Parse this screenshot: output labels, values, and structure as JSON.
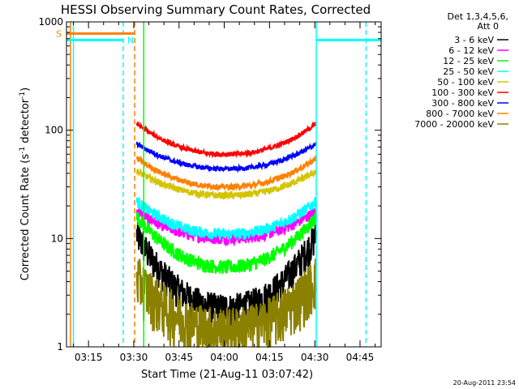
{
  "chart_data": {
    "type": "line",
    "title": "HESSI Observing Summary Count Rates, Corrected",
    "xlabel": "Start Time (21-Aug-11 03:07:42)",
    "ylabel_main": "Corrected Count Rate (s",
    "ylabel_sup1": "-1",
    "ylabel_mid": " detector",
    "ylabel_sup2": "-1",
    "ylabel_end": ")",
    "xlim_min": [
      7.7,
      112
    ],
    "ylim": [
      1,
      1000
    ],
    "y_scale": "log",
    "x_ticks": [
      {
        "min": 15,
        "label": "03:15"
      },
      {
        "min": 30,
        "label": "03:30"
      },
      {
        "min": 45,
        "label": "03:45"
      },
      {
        "min": 60,
        "label": "04:00"
      },
      {
        "min": 75,
        "label": "04:15"
      },
      {
        "min": 90,
        "label": "04:30"
      },
      {
        "min": 105,
        "label": "04:45"
      }
    ],
    "y_ticks": [
      {
        "value": 1,
        "label": "1"
      },
      {
        "value": 10,
        "label": "10"
      },
      {
        "value": 100,
        "label": "100"
      },
      {
        "value": 1000,
        "label": "1000"
      }
    ],
    "legend_header": [
      "Det 1,3,4,5,6,",
      "Att 0"
    ],
    "data_window_min": [
      31,
      90.5
    ],
    "series": [
      {
        "name": "3 - 6 keV",
        "color": "#000000",
        "min_value": 2.3,
        "edge_value": 11,
        "noise": 0.35
      },
      {
        "name": "6 - 12 keV",
        "color": "#ff00ff",
        "min_value": 10,
        "edge_value": 18,
        "noise": 0.12
      },
      {
        "name": "12 - 25 keV",
        "color": "#00ff00",
        "min_value": 5.5,
        "edge_value": 16,
        "noise": 0.15
      },
      {
        "name": "25 - 50 keV",
        "color": "#00ffff",
        "min_value": 11,
        "edge_value": 22,
        "noise": 0.12
      },
      {
        "name": "50 - 100 keV",
        "color": "#d4c400",
        "min_value": 25,
        "edge_value": 42,
        "noise": 0.07
      },
      {
        "name": "100 - 300 keV",
        "color": "#ff0000",
        "min_value": 60,
        "edge_value": 115,
        "noise": 0.05
      },
      {
        "name": "300 - 800 keV",
        "color": "#0000ff",
        "min_value": 44,
        "edge_value": 75,
        "noise": 0.05
      },
      {
        "name": "800 - 7000 keV",
        "color": "#ff8000",
        "min_value": 30,
        "edge_value": 55,
        "noise": 0.06
      },
      {
        "name": "7000 - 20000 keV",
        "color": "#8b8000",
        "min_value": 1.5,
        "edge_value": 4.5,
        "noise": 0.55
      }
    ],
    "flags": [
      {
        "label": "S",
        "color": "#ff8000",
        "from_min": 7.7,
        "to_min": 30.3,
        "value": 780
      },
      {
        "label": "N",
        "color": "#00ffff",
        "from_min": 7.7,
        "to_min": 26.5,
        "value": 680
      },
      {
        "label": "",
        "color": "#00ffff",
        "from_min": 90.5,
        "to_min": 112,
        "value": 680
      }
    ],
    "vertical_lines": [
      {
        "min": 9,
        "color": "#ff8000",
        "dashed": false
      },
      {
        "min": 10,
        "color": "#00ffff",
        "dashed": false
      },
      {
        "min": 26.5,
        "color": "#00ffff",
        "dashed": true
      },
      {
        "min": 30.3,
        "color": "#ff8000",
        "dashed": true
      },
      {
        "min": 33.3,
        "color": "#00ff00",
        "dashed": false
      },
      {
        "min": 90.5,
        "color": "#00ffff",
        "dashed": false
      },
      {
        "min": 107,
        "color": "#00ffff",
        "dashed": true
      }
    ],
    "timestamp": "20-Aug-2011 23:54"
  }
}
